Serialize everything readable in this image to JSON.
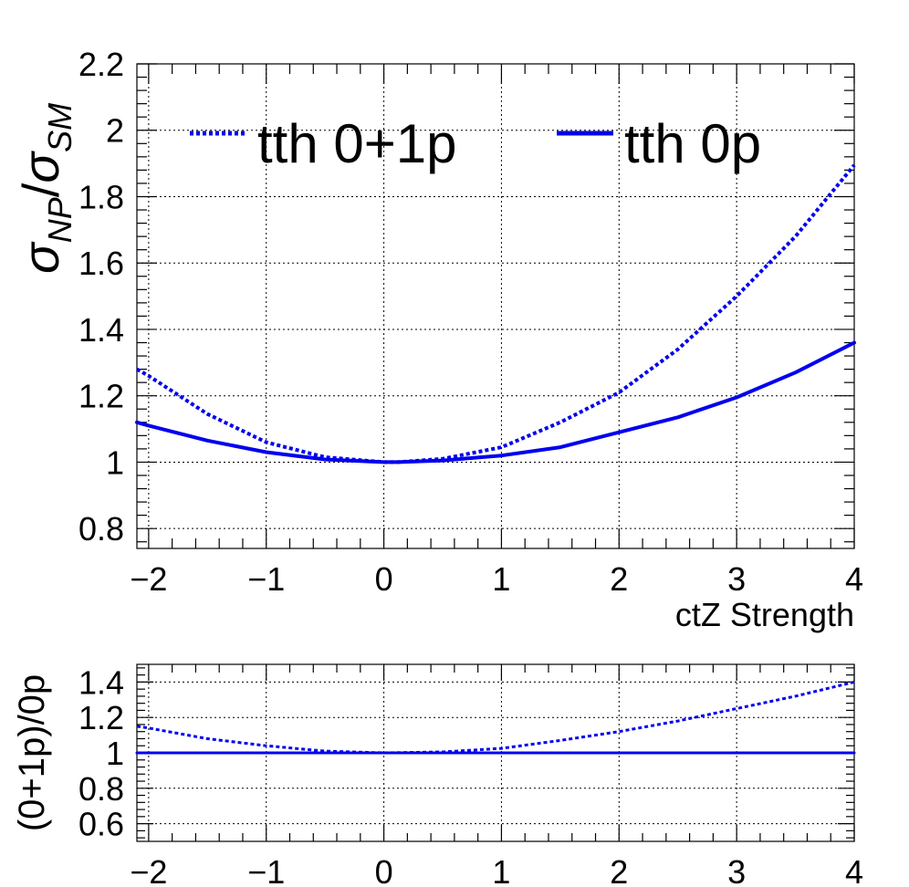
{
  "chart_data": [
    {
      "type": "line",
      "xlabel": "ctZ Strength",
      "ylabel": {
        "base1": "σ",
        "sub1": "NP",
        "slash": "/",
        "base2": "σ",
        "sub2": "SM"
      },
      "xlim": [
        -2.1,
        4.0
      ],
      "ylim": [
        0.74,
        2.2
      ],
      "xticks": [
        "−2",
        "−1",
        "0",
        "1",
        "2",
        "3",
        "4"
      ],
      "xtick_values": [
        -2,
        -1,
        0,
        1,
        2,
        3,
        4
      ],
      "yticks": [
        "0.8",
        "1",
        "1.2",
        "1.4",
        "1.6",
        "1.8",
        "2",
        "2.2"
      ],
      "ytick_values": [
        0.8,
        1.0,
        1.2,
        1.4,
        1.6,
        1.8,
        2.0,
        2.2
      ],
      "grid": true,
      "legend_position": "top",
      "series": [
        {
          "name": "tth 0+1p",
          "style": "dotted",
          "color": "#0000ee",
          "x": [
            -2.1,
            -2.0,
            -1.5,
            -1.0,
            -0.5,
            0.0,
            0.12,
            0.5,
            1.0,
            1.5,
            2.0,
            2.5,
            3.0,
            3.5,
            4.0
          ],
          "y": [
            1.28,
            1.26,
            1.145,
            1.06,
            1.015,
            1.0,
            1.0,
            1.01,
            1.045,
            1.12,
            1.21,
            1.34,
            1.5,
            1.68,
            1.895
          ]
        },
        {
          "name": "tth 0p",
          "style": "solid",
          "color": "#0000ee",
          "x": [
            -2.1,
            -2.0,
            -1.5,
            -1.0,
            -0.5,
            0.0,
            0.12,
            0.5,
            1.0,
            1.5,
            2.0,
            2.5,
            3.0,
            3.5,
            4.0
          ],
          "y": [
            1.12,
            1.11,
            1.065,
            1.03,
            1.008,
            1.0,
            1.0,
            1.005,
            1.02,
            1.045,
            1.09,
            1.135,
            1.195,
            1.27,
            1.36
          ]
        }
      ]
    },
    {
      "type": "line",
      "ylabel": "(0+1p)/0p",
      "xlim": [
        -2.1,
        4.0
      ],
      "ylim": [
        0.5,
        1.5
      ],
      "xticks": [
        "−2",
        "−1",
        "0",
        "1",
        "2",
        "3",
        "4"
      ],
      "xtick_values": [
        -2,
        -1,
        0,
        1,
        2,
        3,
        4
      ],
      "yticks": [
        "0.6",
        "0.8",
        "1",
        "1.2",
        "1.4"
      ],
      "ytick_values": [
        0.6,
        0.8,
        1.0,
        1.2,
        1.4
      ],
      "grid": true,
      "series": [
        {
          "style": "dotted",
          "color": "#0000ee",
          "x": [
            -2.1,
            -2.0,
            -1.5,
            -1.0,
            -0.5,
            0.0,
            0.5,
            1.0,
            1.5,
            2.0,
            2.5,
            3.0,
            3.5,
            4.0
          ],
          "y": [
            1.15,
            1.14,
            1.08,
            1.04,
            1.01,
            1.0,
            1.005,
            1.025,
            1.07,
            1.12,
            1.18,
            1.25,
            1.32,
            1.4
          ]
        },
        {
          "style": "solid",
          "color": "#0000ee",
          "x": [
            -2.1,
            4.0
          ],
          "y": [
            1.0,
            1.0
          ]
        }
      ]
    }
  ]
}
